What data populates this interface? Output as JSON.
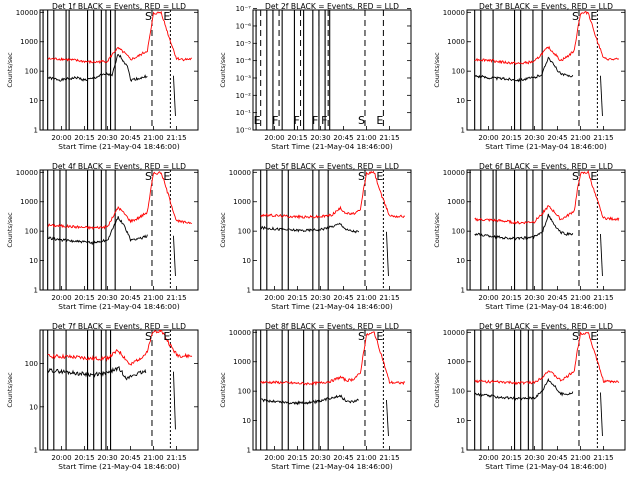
{
  "figure": {
    "xlabel": "Start Time (21-May-04 18:46:00)",
    "ylabel": "Counts/sec",
    "x_ticks": [
      "20:00",
      "20:15",
      "20:30",
      "20:45",
      "21:00",
      "21:15"
    ],
    "x_tick_minutes": [
      75,
      90,
      105,
      120,
      135,
      150
    ],
    "colors": {
      "events": "#000000",
      "lld": "#ff0000",
      "axes": "#000000"
    }
  },
  "chart_data": [
    {
      "type": "line",
      "title": "Det 1f BLACK = Events, RED = LLD",
      "xlabel": "Start Time (21-May-04 18:46:00)",
      "ylabel": "Counts/sec",
      "yscale": "log",
      "ylim": [
        1,
        12000
      ],
      "yticks": [
        "1",
        "10",
        "100",
        "1000",
        "10000"
      ],
      "ytick_values": [
        1,
        10,
        100,
        1000,
        10000
      ],
      "markers": [
        {
          "x": 134,
          "label": "S"
        },
        {
          "x": 146,
          "label": "E"
        }
      ],
      "series": [
        {
          "name": "Events",
          "color": "#000000",
          "x": [
            66,
            70,
            75,
            80,
            85,
            90,
            95,
            100,
            105,
            108,
            112,
            116,
            118,
            120,
            124,
            128,
            131
          ],
          "y": [
            60,
            55,
            50,
            55,
            60,
            50,
            55,
            70,
            80,
            70,
            400,
            200,
            160,
            50,
            55,
            60,
            70
          ]
        },
        {
          "name": "LLD",
          "color": "#ff0000",
          "x": [
            66,
            75,
            85,
            95,
            105,
            110,
            112,
            116,
            120,
            124,
            128,
            131,
            133,
            135,
            140,
            145,
            150,
            155,
            160
          ],
          "y": [
            260,
            260,
            230,
            200,
            220,
            500,
            600,
            420,
            250,
            300,
            400,
            500,
            2000,
            9000,
            10000,
            1500,
            270,
            250,
            260
          ]
        }
      ]
    },
    {
      "type": "line",
      "title": "Det 2f BLACK = Events, RED = LLD",
      "xlabel": "Start Time (21-May-04 18:46:00)",
      "ylabel": "Counts/sec",
      "yscale": "log",
      "ylim": [
        1,
        1.2e-07
      ],
      "yticks": [
        "10⁻⁰",
        "10⁻¹",
        "10⁻²",
        "10⁻³",
        "10⁻⁴",
        "10⁻⁵",
        "10⁻⁶",
        "10⁻⁷"
      ],
      "ytick_values": [
        1,
        0.1,
        0.01,
        0.001,
        0.0001,
        1e-05,
        1e-06,
        1e-07
      ],
      "markers": [
        {
          "x": 66,
          "label": "E"
        },
        {
          "x": 78,
          "label": "F"
        },
        {
          "x": 92,
          "label": "F"
        },
        {
          "x": 104,
          "label": "F"
        },
        {
          "x": 110,
          "label": "F"
        },
        {
          "x": 134,
          "label": "S"
        },
        {
          "x": 146,
          "label": "E"
        }
      ],
      "series": []
    },
    {
      "type": "line",
      "title": "Det 3f BLACK = Events, RED = LLD",
      "xlabel": "Start Time (21-May-04 18:46:00)",
      "ylabel": "Counts/sec",
      "yscale": "log",
      "ylim": [
        1,
        12000
      ],
      "yticks": [
        "1",
        "10",
        "100",
        "1000",
        "10000"
      ],
      "ytick_values": [
        1,
        10,
        100,
        1000,
        10000
      ],
      "markers": [
        {
          "x": 134,
          "label": "S"
        },
        {
          "x": 146,
          "label": "E"
        }
      ],
      "series": [
        {
          "name": "Events",
          "color": "#000000",
          "x": [
            66,
            75,
            85,
            95,
            105,
            110,
            114,
            118,
            122,
            126,
            130
          ],
          "y": [
            70,
            60,
            55,
            50,
            60,
            80,
            300,
            150,
            80,
            70,
            70
          ]
        },
        {
          "name": "LLD",
          "color": "#ff0000",
          "x": [
            66,
            75,
            85,
            95,
            105,
            110,
            114,
            118,
            122,
            126,
            131,
            133,
            135,
            140,
            145,
            150,
            155,
            160
          ],
          "y": [
            250,
            240,
            200,
            180,
            210,
            400,
            650,
            400,
            230,
            300,
            500,
            2500,
            9000,
            10000,
            1500,
            270,
            250,
            250
          ]
        }
      ]
    },
    {
      "type": "line",
      "title": "Det 4f BLACK = Events, RED = LLD",
      "xlabel": "Start Time (21-May-04 18:46:00)",
      "ylabel": "Counts/sec",
      "yscale": "log",
      "ylim": [
        1,
        12000
      ],
      "yticks": [
        "1",
        "10",
        "100",
        "1000",
        "10000"
      ],
      "ytick_values": [
        1,
        10,
        100,
        1000,
        10000
      ],
      "markers": [
        {
          "x": 134,
          "label": "S"
        },
        {
          "x": 146,
          "label": "E"
        }
      ],
      "series": [
        {
          "name": "Events",
          "color": "#000000",
          "x": [
            66,
            75,
            85,
            95,
            105,
            112,
            116,
            120,
            124,
            128,
            131
          ],
          "y": [
            60,
            50,
            45,
            40,
            50,
            300,
            150,
            50,
            55,
            60,
            70
          ]
        },
        {
          "name": "LLD",
          "color": "#ff0000",
          "x": [
            66,
            75,
            85,
            95,
            105,
            112,
            116,
            120,
            124,
            128,
            131,
            133,
            135,
            140,
            145,
            150,
            155,
            160
          ],
          "y": [
            160,
            150,
            140,
            130,
            140,
            650,
            400,
            220,
            260,
            350,
            450,
            2200,
            9000,
            10000,
            1500,
            220,
            200,
            200
          ]
        }
      ]
    },
    {
      "type": "line",
      "title": "Det 5f BLACK = Events, RED = LLD",
      "xlabel": "Start Time (21-May-04 18:46:00)",
      "ylabel": "Counts/sec",
      "yscale": "log",
      "ylim": [
        1,
        12000
      ],
      "yticks": [
        "1",
        "10",
        "100",
        "1000",
        "10000"
      ],
      "ytick_values": [
        1,
        10,
        100,
        1000,
        10000
      ],
      "markers": [
        {
          "x": 134,
          "label": "S"
        },
        {
          "x": 146,
          "label": "E"
        }
      ],
      "series": [
        {
          "name": "Events",
          "color": "#000000",
          "x": [
            66,
            75,
            85,
            95,
            105,
            112,
            118,
            122,
            126,
            130
          ],
          "y": [
            130,
            120,
            110,
            105,
            115,
            140,
            180,
            110,
            100,
            95
          ]
        },
        {
          "name": "LLD",
          "color": "#ff0000",
          "x": [
            66,
            75,
            85,
            95,
            105,
            112,
            118,
            122,
            126,
            131,
            133,
            135,
            140,
            145,
            150,
            155,
            160
          ],
          "y": [
            350,
            340,
            320,
            300,
            310,
            350,
            600,
            400,
            380,
            500,
            2500,
            9000,
            10000,
            1500,
            340,
            320,
            320
          ]
        }
      ]
    },
    {
      "type": "line",
      "title": "Det 6f BLACK = Events, RED = LLD",
      "xlabel": "Start Time (21-May-04 18:46:00)",
      "ylabel": "Counts/sec",
      "yscale": "log",
      "ylim": [
        1,
        12000
      ],
      "yticks": [
        "1",
        "10",
        "100",
        "1000",
        "10000"
      ],
      "ytick_values": [
        1,
        10,
        100,
        1000,
        10000
      ],
      "markers": [
        {
          "x": 134,
          "label": "S"
        },
        {
          "x": 146,
          "label": "E"
        }
      ],
      "series": [
        {
          "name": "Events",
          "color": "#000000",
          "x": [
            66,
            75,
            85,
            95,
            105,
            110,
            114,
            118,
            122,
            126,
            130
          ],
          "y": [
            80,
            70,
            60,
            55,
            65,
            90,
            350,
            160,
            90,
            80,
            80
          ]
        },
        {
          "name": "LLD",
          "color": "#ff0000",
          "x": [
            66,
            75,
            85,
            95,
            105,
            110,
            114,
            118,
            122,
            126,
            131,
            133,
            135,
            140,
            145,
            150,
            155,
            160
          ],
          "y": [
            250,
            240,
            220,
            190,
            210,
            400,
            700,
            450,
            250,
            320,
            500,
            2500,
            9000,
            10000,
            1500,
            280,
            260,
            260
          ]
        }
      ]
    },
    {
      "type": "line",
      "title": "Det 7f BLACK = Events, RED = LLD",
      "xlabel": "Start Time (21-May-04 18:46:00)",
      "ylabel": "Counts/sec",
      "yscale": "log",
      "ylim": [
        1,
        600
      ],
      "yticks": [
        "1",
        "10",
        "100"
      ],
      "ytick_values": [
        1,
        10,
        100
      ],
      "markers": [
        {
          "x": 134,
          "label": "S"
        },
        {
          "x": 146,
          "label": "E"
        }
      ],
      "series": [
        {
          "name": "Events",
          "color": "#000000",
          "x": [
            66,
            75,
            85,
            95,
            105,
            112,
            118,
            122,
            126,
            130
          ],
          "y": [
            70,
            65,
            60,
            55,
            60,
            80,
            45,
            55,
            60,
            65
          ]
        },
        {
          "name": "LLD",
          "color": "#ff0000",
          "x": [
            66,
            75,
            85,
            95,
            105,
            112,
            116,
            120,
            124,
            128,
            131,
            133,
            135,
            140,
            145,
            150,
            155,
            160
          ],
          "y": [
            150,
            145,
            140,
            130,
            135,
            200,
            140,
            90,
            120,
            150,
            180,
            350,
            550,
            600,
            300,
            160,
            150,
            150
          ]
        }
      ]
    },
    {
      "type": "line",
      "title": "Det 8f BLACK = Events, RED = LLD",
      "xlabel": "Start Time (21-May-04 18:46:00)",
      "ylabel": "Counts/sec",
      "yscale": "log",
      "ylim": [
        1,
        12000
      ],
      "yticks": [
        "1",
        "10",
        "100",
        "1000",
        "10000"
      ],
      "ytick_values": [
        1,
        10,
        100,
        1000,
        10000
      ],
      "markers": [
        {
          "x": 134,
          "label": "S"
        },
        {
          "x": 146,
          "label": "E"
        }
      ],
      "series": [
        {
          "name": "Events",
          "color": "#000000",
          "x": [
            66,
            75,
            85,
            95,
            105,
            112,
            118,
            122,
            126,
            130
          ],
          "y": [
            50,
            45,
            40,
            40,
            45,
            60,
            70,
            45,
            45,
            50
          ]
        },
        {
          "name": "LLD",
          "color": "#ff0000",
          "x": [
            66,
            75,
            85,
            95,
            105,
            112,
            118,
            122,
            126,
            131,
            133,
            135,
            140,
            145,
            150,
            155,
            160
          ],
          "y": [
            200,
            200,
            190,
            180,
            190,
            220,
            300,
            230,
            250,
            400,
            2000,
            8000,
            10000,
            1500,
            200,
            190,
            190
          ]
        }
      ]
    },
    {
      "type": "line",
      "title": "Det 9f BLACK = Events, RED = LLD",
      "xlabel": "Start Time (21-May-04 18:46:00)",
      "ylabel": "Counts/sec",
      "yscale": "log",
      "ylim": [
        1,
        12000
      ],
      "yticks": [
        "1",
        "10",
        "100",
        "1000",
        "10000"
      ],
      "ytick_values": [
        1,
        10,
        100,
        1000,
        10000
      ],
      "markers": [
        {
          "x": 134,
          "label": "S"
        },
        {
          "x": 146,
          "label": "E"
        }
      ],
      "series": [
        {
          "name": "Events",
          "color": "#000000",
          "x": [
            66,
            75,
            85,
            95,
            105,
            110,
            114,
            118,
            122,
            126,
            130
          ],
          "y": [
            80,
            70,
            60,
            55,
            60,
            100,
            250,
            150,
            80,
            80,
            90
          ]
        },
        {
          "name": "LLD",
          "color": "#ff0000",
          "x": [
            66,
            75,
            85,
            95,
            105,
            110,
            114,
            118,
            122,
            126,
            131,
            133,
            135,
            140,
            145,
            150,
            155,
            160
          ],
          "y": [
            220,
            210,
            200,
            190,
            200,
            300,
            500,
            350,
            230,
            300,
            500,
            2500,
            9000,
            10000,
            1500,
            220,
            210,
            210
          ]
        }
      ]
    }
  ]
}
